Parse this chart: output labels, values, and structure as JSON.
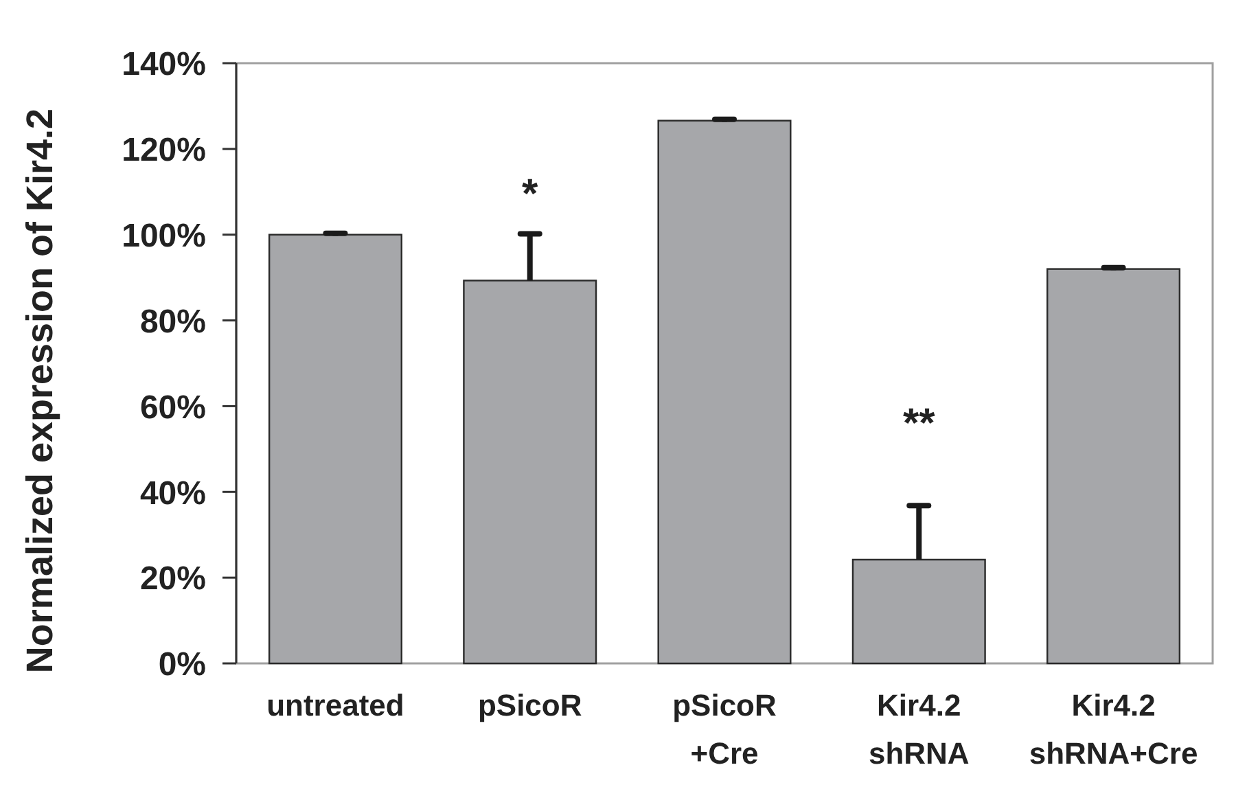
{
  "chart_data": {
    "type": "bar",
    "ylabel": "Normalized expression of Kir4.2",
    "categories": [
      "untreated",
      "pSicoR",
      "pSicoR\n+Cre",
      "Kir4.2\nshRNA",
      "Kir4.2\nshRNA+Cre"
    ],
    "values": [
      100,
      89.3,
      126.6,
      24.2,
      92
    ],
    "errors": [
      0.3,
      [
        89.3,
        100.2
      ],
      0.3,
      [
        24.2,
        36.8
      ],
      0.3
    ],
    "color": "#a6a7aa",
    "ylim": [
      0,
      140
    ],
    "yticks": [
      {
        "value": 0,
        "label": "0%"
      },
      {
        "value": 20,
        "label": "20%"
      },
      {
        "value": 40,
        "label": "40%"
      },
      {
        "value": 60,
        "label": "60%"
      },
      {
        "value": 80,
        "label": "80%"
      },
      {
        "value": 100,
        "label": "100%"
      },
      {
        "value": 120,
        "label": "120%"
      },
      {
        "value": 140,
        "label": "140%"
      }
    ],
    "annotations": [
      "*",
      "**"
    ],
    "grid": false
  }
}
